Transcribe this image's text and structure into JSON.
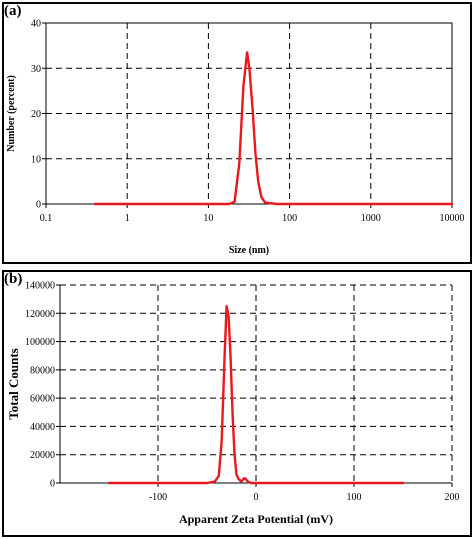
{
  "panels": {
    "a": {
      "label": "(a)"
    },
    "b": {
      "label": "(b)"
    }
  },
  "chart_data": [
    {
      "type": "line",
      "panel": "(a)",
      "xscale": "log",
      "xlabel": "Size (nm)",
      "ylabel": "Number (percent)",
      "xlim": [
        0.1,
        10000
      ],
      "ylim": [
        0,
        40
      ],
      "xticks": [
        0.1,
        1,
        10,
        100,
        1000,
        10000
      ],
      "xtick_labels": [
        "0.1",
        "1",
        "10",
        "100",
        "1000",
        "10000"
      ],
      "yticks": [
        0,
        10,
        20,
        30,
        40
      ],
      "ytick_labels": [
        "0",
        "10",
        "20",
        "30",
        "40"
      ],
      "grid": true,
      "line_color": "#e8181c",
      "series": [
        {
          "x": [
            0.4,
            10,
            18,
            21,
            24,
            27,
            30,
            32,
            35,
            38,
            41,
            45,
            50,
            70,
            100,
            1000,
            10000
          ],
          "y": [
            0,
            0,
            0,
            0.5,
            9,
            26,
            33.5,
            30,
            21,
            11,
            5,
            1.5,
            0.3,
            0,
            0,
            0,
            0
          ]
        }
      ]
    },
    {
      "type": "line",
      "panel": "(b)",
      "xlabel": "Apparent Zeta Potential (mV)",
      "ylabel": "Total Counts",
      "xlim": [
        -200,
        200
      ],
      "ylim": [
        0,
        140000
      ],
      "xticks": [
        -100,
        0,
        100,
        200
      ],
      "xtick_labels": [
        "-100",
        "0",
        "100",
        "200"
      ],
      "yticks": [
        0,
        20000,
        40000,
        60000,
        80000,
        100000,
        120000,
        140000
      ],
      "ytick_labels": [
        "0",
        "20000",
        "40000",
        "60000",
        "80000",
        "100000",
        "120000",
        "140000"
      ],
      "grid": true,
      "line_color": "#e8181c",
      "series": [
        {
          "x": [
            -150,
            -50,
            -42,
            -38,
            -35,
            -32,
            -30,
            -28,
            -26,
            -24,
            -22,
            -20,
            -18,
            -15,
            -12,
            -10,
            -8,
            -5,
            0,
            50,
            150
          ],
          "y": [
            0,
            0,
            1000,
            5000,
            30000,
            90000,
            125000,
            118000,
            90000,
            50000,
            22000,
            6000,
            3000,
            1000,
            3500,
            2500,
            800,
            0,
            0,
            0,
            0
          ]
        }
      ]
    }
  ]
}
